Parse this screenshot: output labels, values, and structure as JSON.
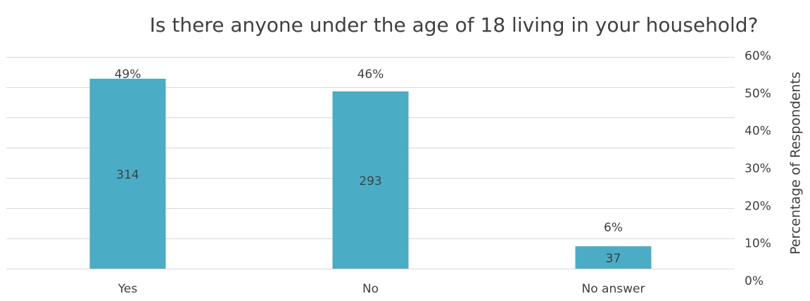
{
  "chart_data": {
    "type": "bar",
    "title": "Is there anyone under the age of 18 living in your household?",
    "categories": [
      "Yes",
      "No",
      "No answer"
    ],
    "series": [
      {
        "name": "Respondents",
        "color": "#4bacc6",
        "values": [
          314,
          293,
          37
        ]
      },
      {
        "name": "Percentage of Respondents",
        "axis": "y2",
        "values": [
          49,
          46,
          6
        ],
        "value_labels": [
          "49%",
          "46%",
          "6%"
        ]
      }
    ],
    "ylim": [
      0,
      350
    ],
    "yticks": [
      0,
      50,
      100,
      150,
      200,
      250,
      300,
      350
    ],
    "y2label": "Percentage of Respondents",
    "y2lim": [
      0,
      60
    ],
    "y2ticks": [
      {
        "value": 0,
        "label": "0%"
      },
      {
        "value": 10,
        "label": "10%"
      },
      {
        "value": 20,
        "label": "20%"
      },
      {
        "value": 30,
        "label": "30%"
      },
      {
        "value": 40,
        "label": "40%"
      },
      {
        "value": 50,
        "label": "50%"
      },
      {
        "value": 60,
        "label": "60%"
      }
    ],
    "grid": true
  }
}
